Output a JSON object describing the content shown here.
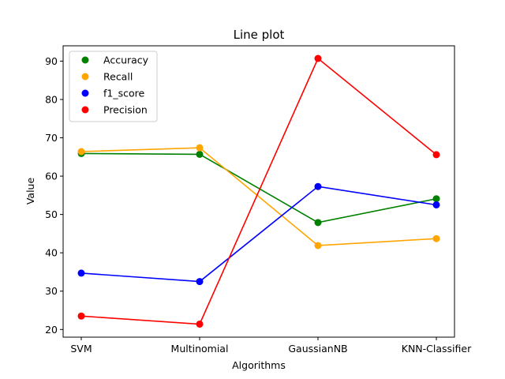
{
  "chart_data": {
    "type": "line",
    "title": "Line plot",
    "xlabel": "Algorithms",
    "ylabel": "Value",
    "categories": [
      "SVM",
      "Multinomial",
      "GaussianNB",
      "KNN-Classifier"
    ],
    "ylim": [
      18,
      94
    ],
    "yticks": [
      20,
      30,
      40,
      50,
      60,
      70,
      80,
      90
    ],
    "grid": false,
    "legend_position": "top-left",
    "series": [
      {
        "name": "Accuracy",
        "color": "#008000",
        "values": [
          65.9,
          65.7,
          47.9,
          54.1
        ]
      },
      {
        "name": "Recall",
        "color": "#FFA500",
        "values": [
          66.4,
          67.4,
          41.9,
          43.7
        ]
      },
      {
        "name": "f1_score",
        "color": "#0000FF",
        "values": [
          34.7,
          32.5,
          57.3,
          52.5
        ]
      },
      {
        "name": "Precision",
        "color": "#FF0000",
        "values": [
          23.5,
          21.4,
          90.7,
          65.6
        ]
      }
    ]
  }
}
